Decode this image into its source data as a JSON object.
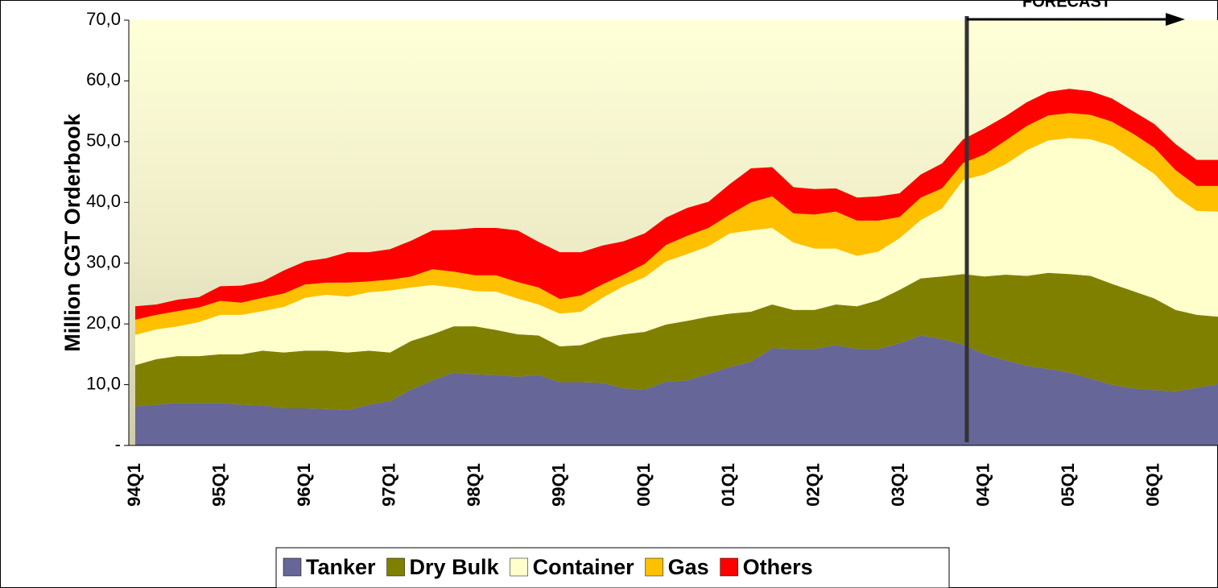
{
  "chart_data": {
    "type": "stacked-area",
    "y_label": "Million CGT Orderbook",
    "annotation": "FORECAST",
    "categories": [
      "94Q1",
      null,
      null,
      null,
      "95Q1",
      null,
      null,
      null,
      "96Q1",
      null,
      null,
      null,
      "97Q1",
      null,
      null,
      null,
      "98Q1",
      null,
      null,
      null,
      "99Q1",
      null,
      null,
      null,
      "00Q1",
      null,
      null,
      null,
      "01Q1",
      null,
      null,
      null,
      "02Q1",
      null,
      null,
      null,
      "03Q1",
      null,
      null,
      null,
      "04Q1",
      null,
      null,
      null,
      "05Q1",
      null,
      null,
      null,
      "06Q1",
      null,
      null,
      null
    ],
    "series": [
      {
        "name": "Tanker",
        "color": "#666699",
        "values": [
          6.4,
          6.7,
          7.0,
          7.0,
          7.0,
          6.7,
          6.6,
          6.1,
          6.1,
          6.0,
          5.8,
          6.7,
          7.3,
          9.2,
          10.7,
          12.0,
          11.7,
          11.6,
          11.3,
          11.6,
          10.4,
          10.4,
          10.3,
          9.4,
          9.2,
          10.5,
          10.7,
          11.8,
          12.9,
          13.8,
          16.0,
          15.9,
          15.9,
          16.5,
          15.9,
          15.9,
          16.8,
          18.1,
          17.5,
          16.6,
          15.0,
          14.0,
          13.1,
          12.6,
          12.0,
          11.0,
          10.0,
          9.4,
          9.1,
          8.9,
          9.5,
          10.1
        ]
      },
      {
        "name": "Dry Bulk",
        "color": "#808000",
        "values": [
          6.8,
          7.5,
          7.7,
          7.7,
          8.0,
          8.3,
          9.0,
          9.2,
          9.5,
          9.6,
          9.5,
          8.9,
          8.0,
          8.0,
          7.6,
          7.6,
          7.9,
          7.4,
          7.0,
          6.5,
          5.9,
          6.1,
          7.4,
          8.9,
          9.5,
          9.4,
          9.8,
          9.4,
          8.8,
          8.2,
          7.2,
          6.4,
          6.4,
          6.7,
          7.0,
          8.0,
          8.8,
          9.4,
          10.3,
          11.6,
          12.8,
          14.1,
          14.8,
          15.8,
          16.2,
          16.9,
          16.6,
          16.0,
          15.1,
          13.4,
          12.0,
          11.1
        ]
      },
      {
        "name": "Container",
        "color": "#ffffcc",
        "values": [
          5.0,
          4.9,
          4.9,
          5.6,
          6.5,
          6.5,
          6.5,
          7.5,
          8.7,
          9.2,
          9.2,
          9.6,
          10.2,
          8.8,
          8.1,
          6.4,
          5.8,
          6.3,
          5.9,
          5.1,
          5.4,
          5.5,
          6.6,
          7.9,
          9.0,
          10.4,
          11.0,
          11.6,
          13.2,
          13.4,
          12.6,
          11.1,
          10.1,
          9.2,
          8.3,
          8.0,
          8.5,
          9.6,
          11.2,
          15.5,
          16.8,
          18.2,
          20.7,
          21.8,
          22.4,
          22.5,
          22.7,
          21.6,
          20.5,
          18.7,
          17.1,
          17.3
        ]
      },
      {
        "name": "Gas",
        "color": "#ffc000",
        "values": [
          2.5,
          2.4,
          2.5,
          2.4,
          2.3,
          2.0,
          2.2,
          2.2,
          2.2,
          2.0,
          2.3,
          1.8,
          1.8,
          1.8,
          2.6,
          2.6,
          2.6,
          2.7,
          2.7,
          2.8,
          2.4,
          2.7,
          2.2,
          1.9,
          2.2,
          2.7,
          3.0,
          3.0,
          3.1,
          4.6,
          5.2,
          4.8,
          5.6,
          6.1,
          5.8,
          5.1,
          3.5,
          3.7,
          3.3,
          2.8,
          3.3,
          3.9,
          4.0,
          4.1,
          4.1,
          4.0,
          4.0,
          4.3,
          4.3,
          4.3,
          4.1,
          4.2
        ]
      },
      {
        "name": "Others",
        "color": "#ff0000",
        "values": [
          2.2,
          1.7,
          1.9,
          1.7,
          2.4,
          2.8,
          2.7,
          3.8,
          3.8,
          4.0,
          5.0,
          4.8,
          5.0,
          5.9,
          6.4,
          6.9,
          7.8,
          7.8,
          8.5,
          7.5,
          7.7,
          7.1,
          6.4,
          5.5,
          5.0,
          4.5,
          4.6,
          4.3,
          5.0,
          5.6,
          4.8,
          4.3,
          4.2,
          3.8,
          3.8,
          4.0,
          3.9,
          3.8,
          4.1,
          3.9,
          4.3,
          4.0,
          3.9,
          3.9,
          4.0,
          3.9,
          3.8,
          3.7,
          3.9,
          4.3,
          4.3,
          4.3
        ]
      }
    ],
    "ylim": [
      0,
      70
    ],
    "yticks": [
      {
        "value": 0,
        "label": "-"
      },
      {
        "value": 10,
        "label": "10,0"
      },
      {
        "value": 20,
        "label": "20,0"
      },
      {
        "value": 30,
        "label": "30,0"
      },
      {
        "value": 40,
        "label": "40,0"
      },
      {
        "value": 50,
        "label": "50,0"
      },
      {
        "value": 60,
        "label": "60,0"
      },
      {
        "value": 70,
        "label": "70,0"
      }
    ],
    "legend": "bottom"
  }
}
